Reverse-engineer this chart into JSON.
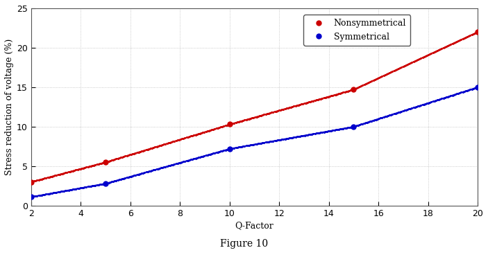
{
  "nonsymmetrical_x": [
    2,
    5,
    10,
    15,
    20
  ],
  "nonsymmetrical_y": [
    3.0,
    5.5,
    10.3,
    14.7,
    22.0
  ],
  "symmetrical_x": [
    2,
    5,
    10,
    15,
    20
  ],
  "symmetrical_y": [
    1.1,
    2.8,
    7.2,
    10.0,
    15.0
  ],
  "line_color_nonsym": "#cc0000",
  "line_color_sym": "#0000cc",
  "xlabel": "Q-Factor",
  "ylabel": "Stress reduction of voltage (%)",
  "caption": "Figure 10",
  "xlim": [
    2,
    20
  ],
  "ylim": [
    0,
    25
  ],
  "xticks": [
    2,
    4,
    6,
    8,
    10,
    12,
    14,
    16,
    18,
    20
  ],
  "yticks": [
    0,
    5,
    10,
    15,
    20,
    25
  ],
  "legend_nonsym": "Nonsymmetrical",
  "legend_sym": "Symmetrical",
  "grid_color": "#bbbbbb",
  "grid_linestyle": ":",
  "background_color": "#ffffff",
  "fig_width": 7.03,
  "fig_height": 3.71,
  "dpi": 100
}
